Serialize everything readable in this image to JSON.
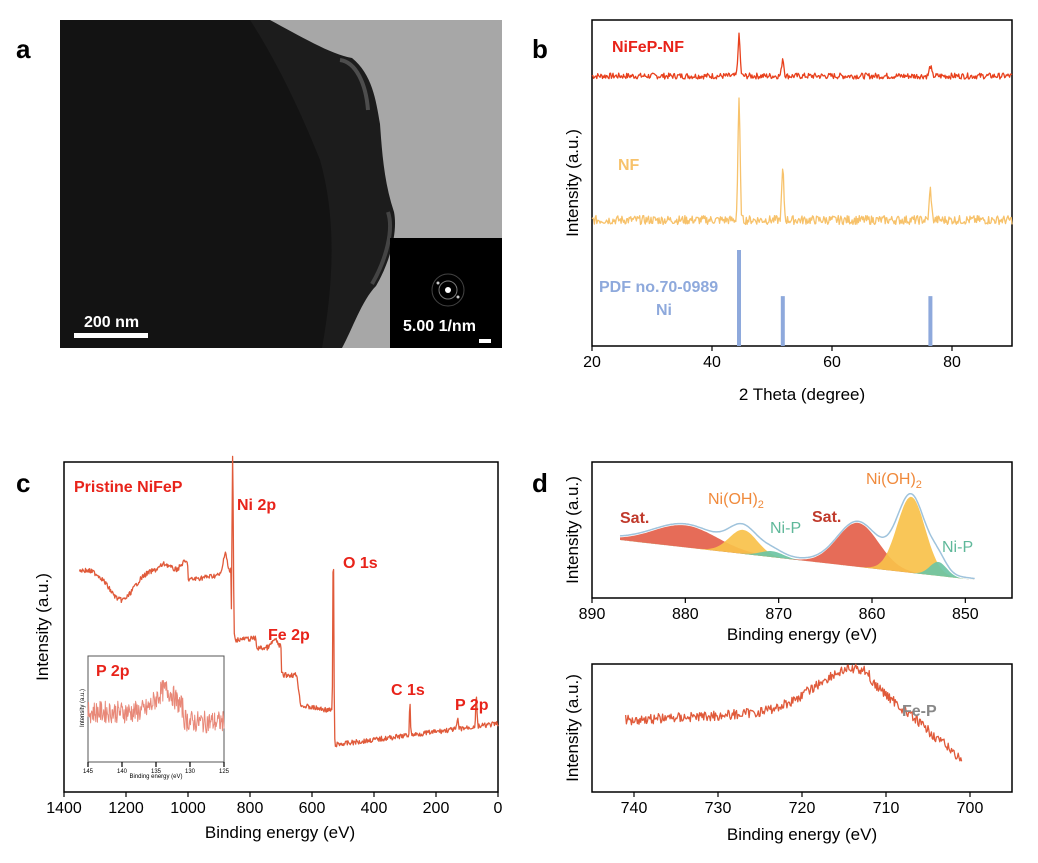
{
  "panels": {
    "a": {
      "letter": "a",
      "scale_bar": "200 nm",
      "inset_scale": "5.00  1/nm"
    },
    "b": {
      "letter": "b",
      "labels": [
        "NiFeP-NF",
        "NF",
        "PDF  no.70-0989",
        "Ni"
      ]
    },
    "c": {
      "letter": "c",
      "title": "Pristine  NiFeP",
      "peaks": [
        "Ni 2p",
        "O 1s",
        "Fe 2p",
        "C 1s",
        "P 2p"
      ],
      "inset_title": "P  2p"
    },
    "d": {
      "letter": "d",
      "top_labels": [
        "Sat.",
        "Ni(OH)",
        "Ni-P",
        "Sat.",
        "Ni(OH)",
        "Ni-P"
      ],
      "bottom_label": "Fe-P"
    }
  },
  "chart_data": [
    {
      "panel": "b",
      "type": "line",
      "xlabel": "2 Theta (degree)",
      "ylabel": "Intensity (a.u.)",
      "xlim": [
        20,
        90
      ],
      "xticks": [
        20,
        40,
        60,
        80
      ],
      "series": [
        {
          "name": "NiFeP-NF",
          "color": "#e8401c",
          "peaks": [
            {
              "x": 44.5,
              "height": 1.0
            },
            {
              "x": 51.8,
              "height": 0.45
            },
            {
              "x": 76.4,
              "height": 0.25
            }
          ]
        },
        {
          "name": "NF",
          "color": "#f7c26b",
          "peaks": [
            {
              "x": 44.5,
              "height": 1.0
            },
            {
              "x": 51.8,
              "height": 0.42
            },
            {
              "x": 76.4,
              "height": 0.26
            }
          ]
        },
        {
          "name": "PDF  no.70-0989 Ni",
          "color": "#8ea9dc",
          "type": "stick",
          "peaks": [
            {
              "x": 44.5,
              "height": 1.0
            },
            {
              "x": 51.8,
              "height": 0.52
            },
            {
              "x": 76.4,
              "height": 0.52
            }
          ]
        }
      ]
    },
    {
      "panel": "c",
      "type": "line",
      "xlabel": "Binding energy (eV)",
      "ylabel": "Intensity (a.u.)",
      "xlim": [
        1400,
        0
      ],
      "xticks": [
        1400,
        1200,
        1000,
        800,
        600,
        400,
        200,
        0
      ],
      "series": [
        {
          "name": "Pristine  NiFeP",
          "color": "#e05a3a"
        }
      ],
      "annotations": [
        "Ni 2p",
        "O 1s",
        "Fe 2p",
        "C 1s",
        "P 2p"
      ],
      "inset": {
        "title": "P  2p",
        "xlabel": "Binding energy (eV)",
        "ylabel": "Intensity (a.u.)",
        "xlim": [
          145,
          125
        ],
        "xticks": [
          145,
          140,
          135,
          130,
          125
        ]
      }
    },
    {
      "panel": "d-top",
      "type": "area",
      "xlabel": "Binding energy (eV)",
      "ylabel": "Intensity (a.u.)",
      "xlim": [
        890,
        845
      ],
      "xticks": [
        890,
        880,
        870,
        860,
        850
      ],
      "components": [
        {
          "label": "Sat.",
          "center": 880.0,
          "color": "#e4604a"
        },
        {
          "label": "Ni(OH)2",
          "center": 873.8,
          "color": "#f9c14a"
        },
        {
          "label": "Ni-P",
          "center": 870.5,
          "color": "#6cc4a4"
        },
        {
          "label": "Sat.",
          "center": 861.5,
          "color": "#e4604a"
        },
        {
          "label": "Ni(OH)2",
          "center": 855.8,
          "color": "#f9c14a"
        },
        {
          "label": "Ni-P",
          "center": 852.8,
          "color": "#6cc4a4"
        }
      ]
    },
    {
      "panel": "d-bottom",
      "type": "line",
      "xlabel": "Binding energy (eV)",
      "ylabel": "Intensity (a.u.)",
      "xlim": [
        745,
        695
      ],
      "xticks": [
        740,
        730,
        720,
        710,
        700
      ],
      "series": [
        {
          "name": "Fe-P",
          "color": "#e05a3a"
        }
      ]
    }
  ]
}
